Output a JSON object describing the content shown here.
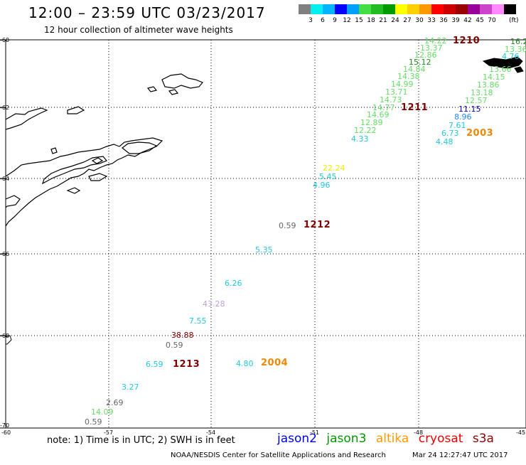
{
  "header": {
    "title": "12:00 – 23:59 UTC 03/23/2017",
    "subtitle": "12 hour collection of altimeter wave heights"
  },
  "legend": {
    "unit": "(ft)",
    "colors": [
      "#808080",
      "#00f0f0",
      "#00b4ff",
      "#0000ff",
      "#00a0ff",
      "#44dd44",
      "#22bb22",
      "#009900",
      "#ffff00",
      "#ffd000",
      "#ff9900",
      "#ff0000",
      "#cc0000",
      "#990000",
      "#990099",
      "#cc44cc",
      "#ff88ff",
      "#000000"
    ],
    "ticks": [
      "3",
      "6",
      "9",
      "12",
      "15",
      "18",
      "21",
      "24",
      "27",
      "30",
      "33",
      "36",
      "39",
      "42",
      "45",
      "70"
    ]
  },
  "latitude_labels": [
    "-60",
    "-62",
    "-64",
    "-66",
    "-68",
    "-70"
  ],
  "longitude_labels": [
    "-60",
    "-57",
    "-54",
    "-51",
    "-48",
    "-45"
  ],
  "passes": [
    {
      "id": "1210",
      "color": "#800000"
    },
    {
      "id": "1211",
      "color": "#800000"
    },
    {
      "id": "1212",
      "color": "#800000"
    },
    {
      "id": "1213",
      "color": "#800000"
    },
    {
      "id": "2003",
      "color": "#ee8800"
    },
    {
      "id": "2004",
      "color": "#ee8800"
    }
  ],
  "wave_heights": [
    {
      "v": "14.22",
      "c": "#66dd66"
    },
    {
      "v": "13.37",
      "c": "#66dd66"
    },
    {
      "v": "12.86",
      "c": "#66dd66"
    },
    {
      "v": "15.12",
      "c": "#228822"
    },
    {
      "v": "14.84",
      "c": "#66dd66"
    },
    {
      "v": "14.38",
      "c": "#66dd66"
    },
    {
      "v": "14.99",
      "c": "#66dd66"
    },
    {
      "v": "13.71",
      "c": "#66dd66"
    },
    {
      "v": "14.73",
      "c": "#66dd66"
    },
    {
      "v": "14.77",
      "c": "#66dd66"
    },
    {
      "v": "14.69",
      "c": "#66dd66"
    },
    {
      "v": "12.89",
      "c": "#66dd66"
    },
    {
      "v": "12.22",
      "c": "#66dd66"
    },
    {
      "v": "4.33",
      "c": "#22c8dd"
    },
    {
      "v": "16.2",
      "c": "#228822"
    },
    {
      "v": "13.36",
      "c": "#66dd66"
    },
    {
      "v": "4.76",
      "c": "#22c8dd"
    },
    {
      "v": "13.66",
      "c": "#66dd66"
    },
    {
      "v": "14.15",
      "c": "#66dd66"
    },
    {
      "v": "13.86",
      "c": "#66dd66"
    },
    {
      "v": "13.18",
      "c": "#66dd66"
    },
    {
      "v": "12.57",
      "c": "#66dd66"
    },
    {
      "v": "11.15",
      "c": "#0000cc"
    },
    {
      "v": "8.96",
      "c": "#2288ff"
    },
    {
      "v": "7.61",
      "c": "#22c8dd"
    },
    {
      "v": "6.73",
      "c": "#22c8dd"
    },
    {
      "v": "4.48",
      "c": "#22c8dd"
    },
    {
      "v": "22.24",
      "c": "#eeee00"
    },
    {
      "v": "5.45",
      "c": "#22c8dd"
    },
    {
      "v": "4.96",
      "c": "#22c8dd"
    },
    {
      "v": "0.59",
      "c": "#666666"
    },
    {
      "v": "5.35",
      "c": "#22c8dd"
    },
    {
      "v": "6.26",
      "c": "#22c8dd"
    },
    {
      "v": "43.28",
      "c": "#c0a0e0"
    },
    {
      "v": "7.55",
      "c": "#22c8dd"
    },
    {
      "v": "38.88",
      "c": "#800000"
    },
    {
      "v": "0.59",
      "c": "#666666"
    },
    {
      "v": "6.59",
      "c": "#22c8dd"
    },
    {
      "v": "4.80",
      "c": "#22c8dd"
    },
    {
      "v": "3.27",
      "c": "#22c8dd"
    },
    {
      "v": "2.69",
      "c": "#666666"
    },
    {
      "v": "14.09",
      "c": "#66dd66"
    },
    {
      "v": "0.59",
      "c": "#666666"
    }
  ],
  "note": "note: 1) Time is in UTC; 2) SWH is in feet",
  "satellites": [
    {
      "name": "jason2",
      "color": "#0000ee"
    },
    {
      "name": "jason3",
      "color": "#009900"
    },
    {
      "name": "altika",
      "color": "#ff9900"
    },
    {
      "name": "cryosat",
      "color": "#ee0000"
    },
    {
      "name": "s3a",
      "color": "#880000"
    }
  ],
  "footer": {
    "credit": "NOAA/NESDIS Center for Satellite Applications and Research",
    "timestamp": "Mar 24 12:27:47 UTC 2017"
  }
}
